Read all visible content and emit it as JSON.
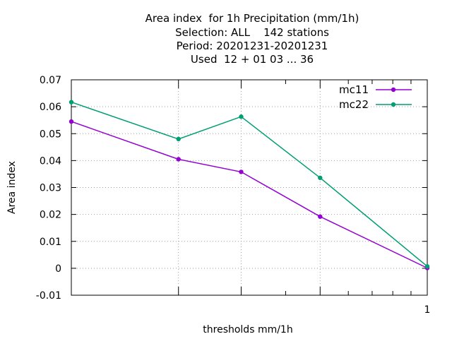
{
  "chart_data": {
    "type": "line",
    "title_lines": [
      "Area index  for 1h Precipitation (mm/1h)",
      "Selection: ALL    142 stations",
      "Period: 20201231-20201231",
      "Used  12 + 01 03 ... 36"
    ],
    "xlabel": "thresholds mm/1h",
    "ylabel": "Area index",
    "x": [
      0.1,
      0.2,
      0.3,
      0.5,
      1.0
    ],
    "xscale": "log",
    "xlim": [
      0.1,
      1.0
    ],
    "x_tick_labels": [
      {
        "value": 1.0,
        "label": "1"
      }
    ],
    "x_major_unlabeled_ticks": [
      0.2,
      0.3,
      0.5
    ],
    "ylim": [
      -0.01,
      0.07
    ],
    "y_ticks": [
      -0.01,
      0,
      0.01,
      0.02,
      0.03,
      0.04,
      0.05,
      0.06,
      0.07
    ],
    "y_tick_labels": [
      "-0.01",
      "0",
      "0.01",
      "0.02",
      "0.03",
      "0.04",
      "0.05",
      "0.06",
      "0.07"
    ],
    "grid": true,
    "legend_position": "top-right",
    "series": [
      {
        "name": "mc11",
        "color": "#9400d3",
        "values": [
          0.0545,
          0.0405,
          0.0358,
          0.0192,
          0.0001
        ]
      },
      {
        "name": "mc22",
        "color": "#009e73",
        "values": [
          0.0617,
          0.048,
          0.0563,
          0.0336,
          0.0007
        ]
      }
    ]
  }
}
